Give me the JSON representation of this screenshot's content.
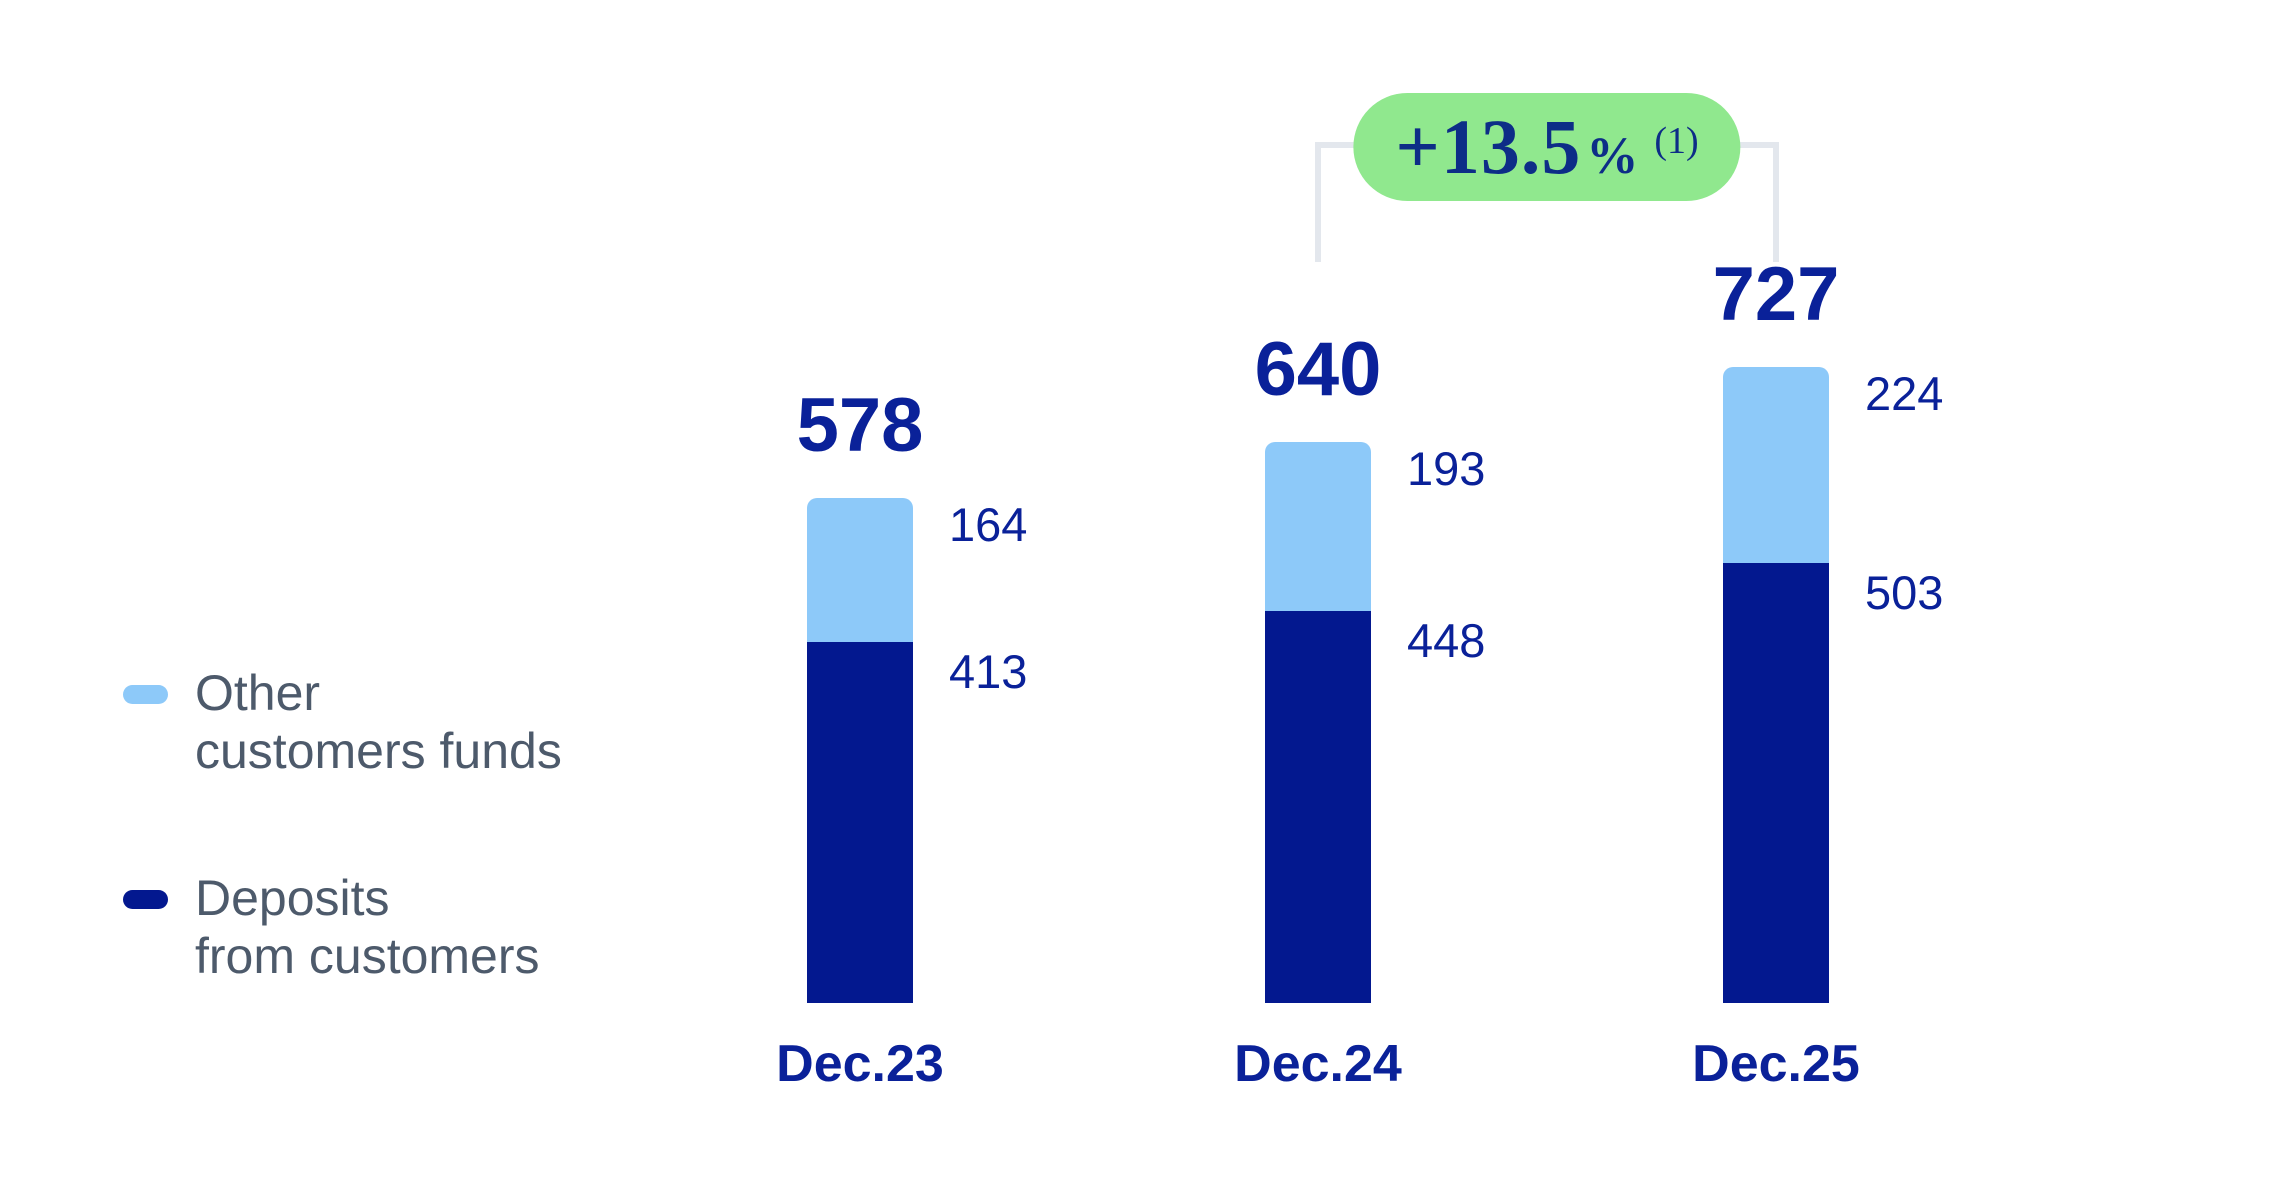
{
  "colors": {
    "deposits_navy": "#03188F",
    "other_light_blue": "#8DC9F9",
    "label_navy": "#0A2199",
    "legend_gray": "#4D5A6B",
    "badge_green": "#90E88E",
    "badge_text_navy": "#0D2D87",
    "bracket_gray": "#E3E7ED"
  },
  "legend": {
    "items": [
      {
        "label": "Other\ncustomers funds",
        "color": "#8DC9F9"
      },
      {
        "label": "Deposits\nfrom customers",
        "color": "#03188F"
      }
    ]
  },
  "chart_data": {
    "type": "bar",
    "stacked": true,
    "grid": false,
    "legend_position": "left",
    "categories": [
      "Dec.23",
      "Dec.24",
      "Dec.25"
    ],
    "series": [
      {
        "name": "Deposits from customers",
        "color": "#03188F",
        "values": [
          413,
          448,
          503
        ]
      },
      {
        "name": "Other customers funds",
        "color": "#8DC9F9",
        "values": [
          164,
          193,
          224
        ]
      }
    ],
    "totals": [
      578,
      640,
      727
    ],
    "annotation": {
      "value": "+13.5",
      "percent_sign": "%",
      "footnote_marker": "(1)",
      "from_category": "Dec.24",
      "to_category": "Dec.25"
    }
  }
}
